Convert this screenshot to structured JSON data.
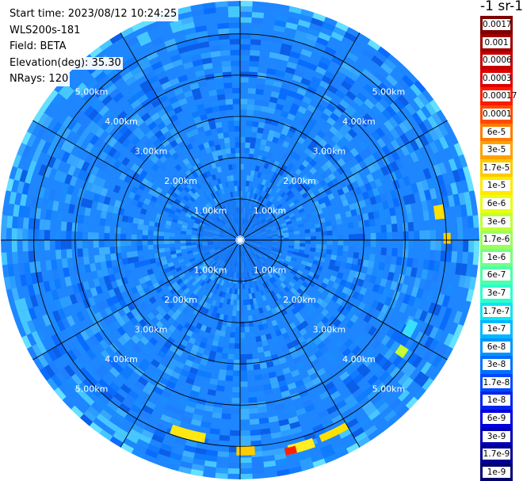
{
  "info": {
    "start_time": "Start time: 2023/08/12 10:24:25",
    "instrument": "WLS200s-181",
    "field": "Field: BETA",
    "elevation": "Elevation(deg): 35.30",
    "nrays": "NRays: 120"
  },
  "units_label": "-1 sr-1",
  "chart_data": {
    "type": "heatmap",
    "projection": "polar (PPI)",
    "field": "BETA",
    "n_rays": 120,
    "elevation_deg": 35.3,
    "range_rings_km": [
      1,
      2,
      3,
      4,
      5
    ],
    "max_range_km": 5.8,
    "range_ring_labels": [
      "1.00km",
      "2.00km",
      "3.00km",
      "4.00km",
      "5.00km"
    ],
    "spokes_deg": [
      0,
      30,
      60,
      90,
      120,
      150,
      180,
      210,
      240,
      270,
      300,
      330
    ],
    "colorbar": {
      "scale": "log",
      "levels": [
        "0.0017",
        "0.001",
        "0.0006",
        "0.0003",
        "0.00017",
        "0.0001",
        "6e-5",
        "3e-5",
        "1.7e-5",
        "1e-5",
        "6e-6",
        "3e-6",
        "1.7e-6",
        "1e-6",
        "6e-7",
        "3e-7",
        "1.7e-7",
        "1e-7",
        "6e-8",
        "3e-8",
        "1.7e-8",
        "1e-8",
        "6e-9",
        "3e-9",
        "1.7e-9",
        "1e-9"
      ],
      "colors": [
        "#7f0000",
        "#a00000",
        "#c40000",
        "#e00000",
        "#ff1a00",
        "#ff4a00",
        "#ff7a00",
        "#ffa200",
        "#ffc800",
        "#ffea00",
        "#e8ff10",
        "#c0ff36",
        "#9aff5c",
        "#74ff82",
        "#4effa8",
        "#2affcc",
        "#10e4f0",
        "#00b8ff",
        "#0094ff",
        "#0070ff",
        "#0048ff",
        "#0024f0",
        "#0000e0",
        "#0000b8",
        "#000090",
        "#000070"
      ]
    }
  }
}
